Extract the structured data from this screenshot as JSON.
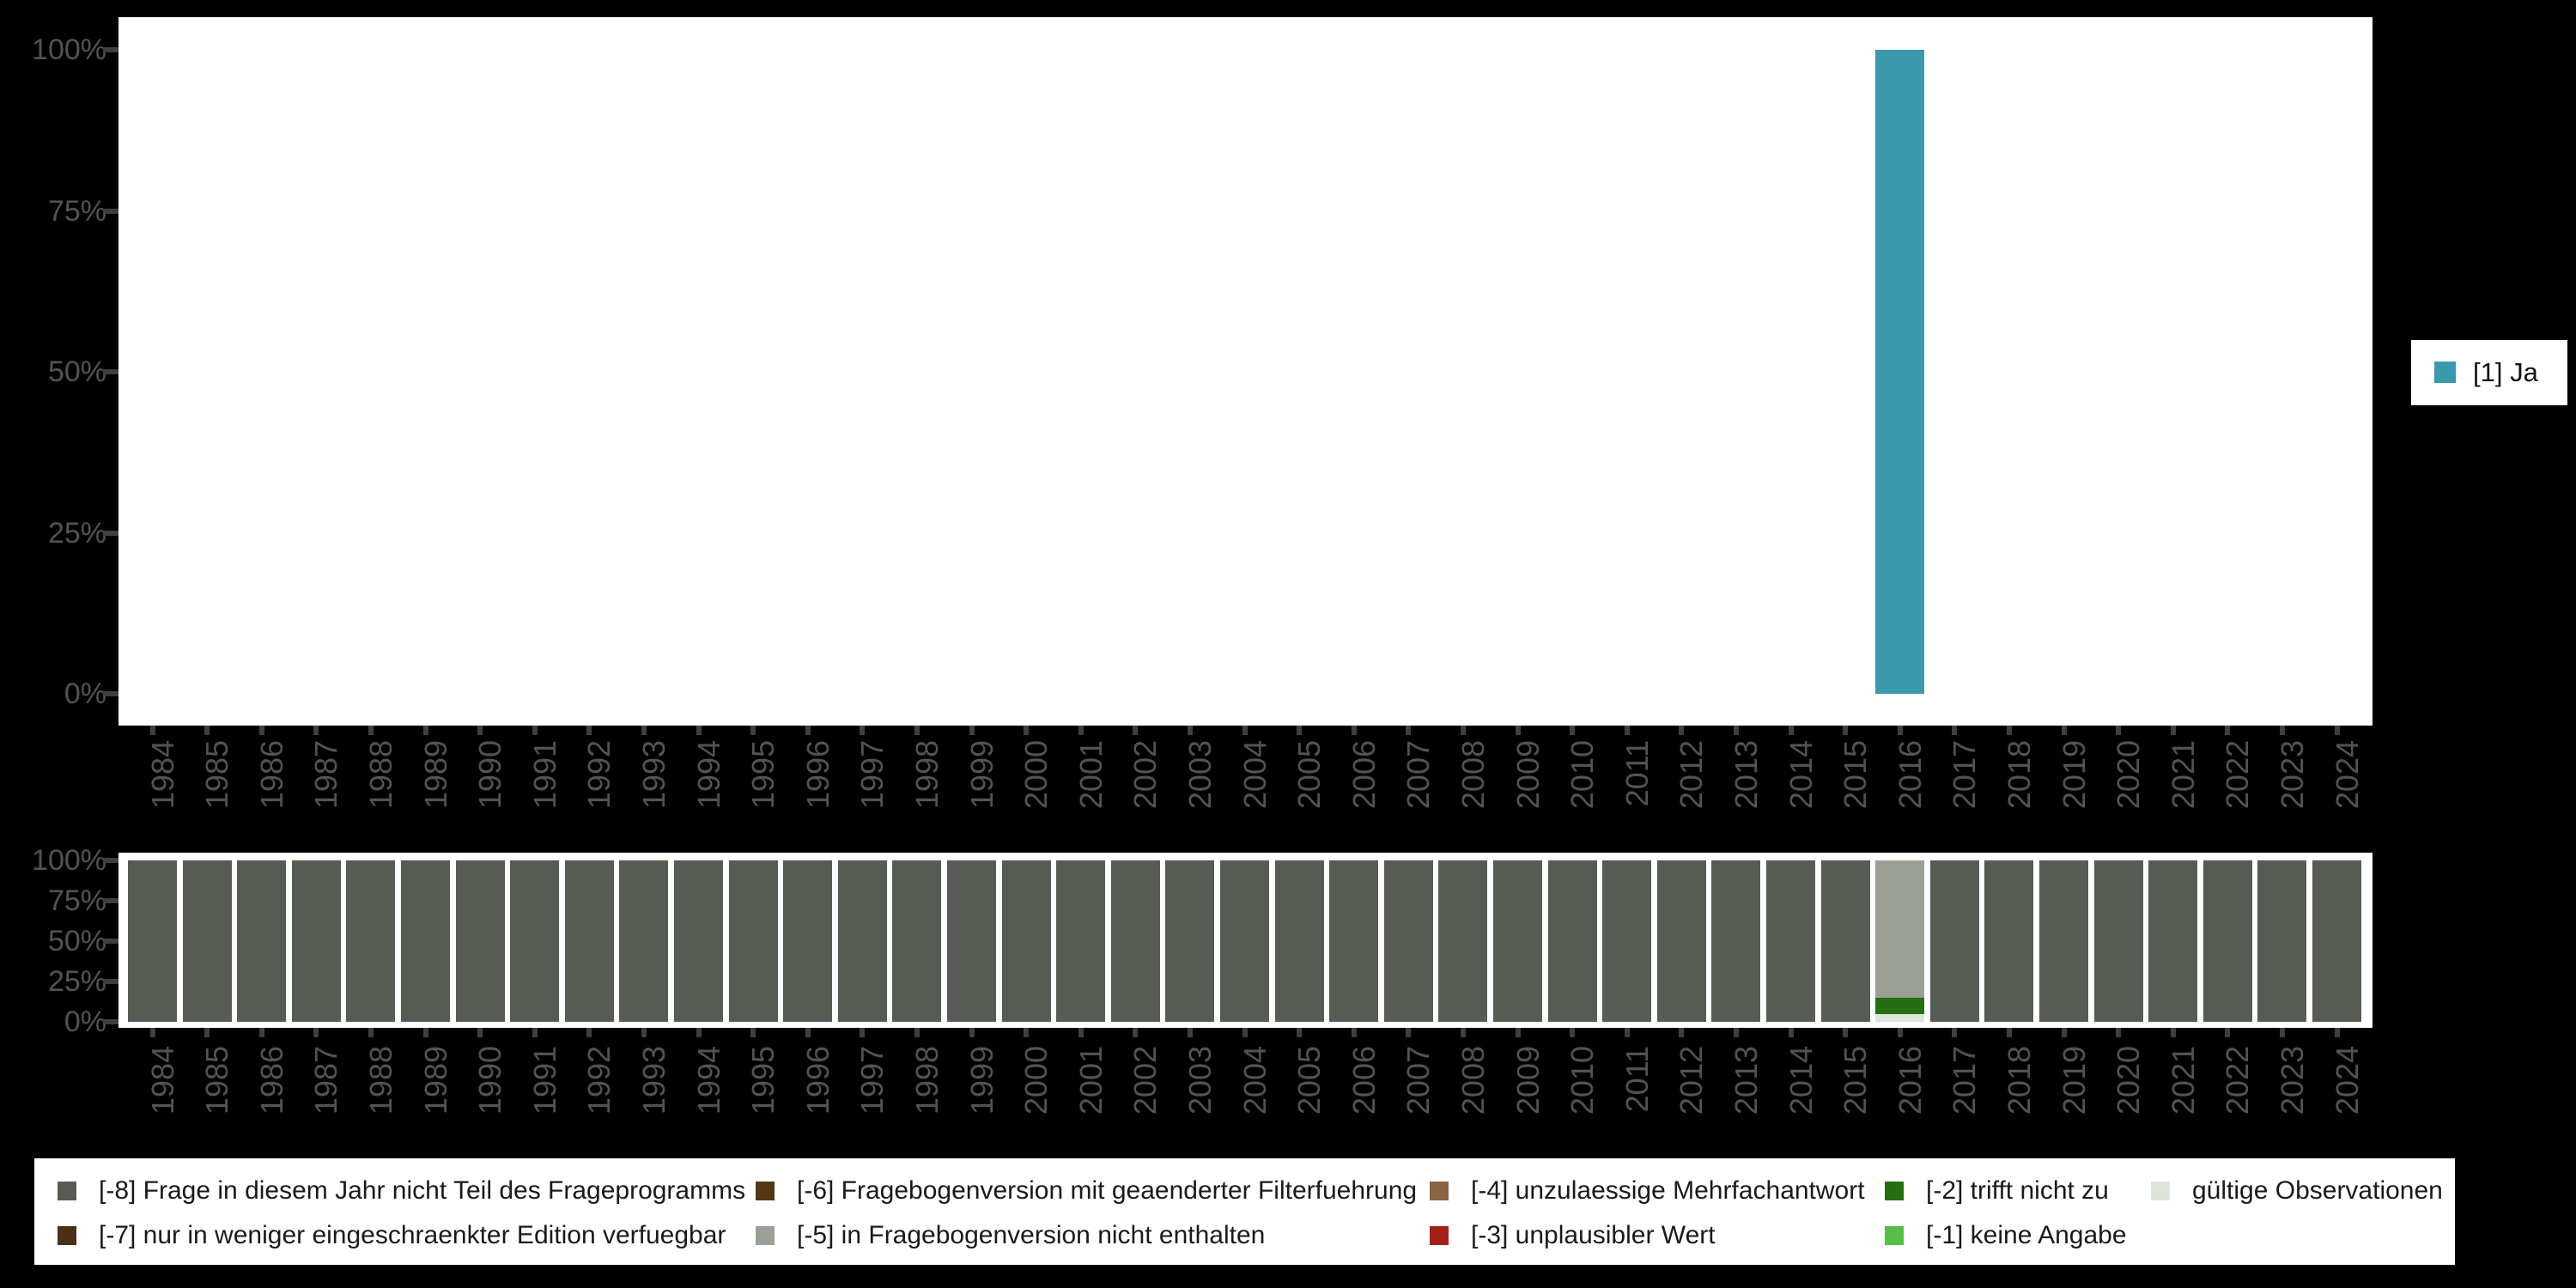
{
  "page_background": "#000000",
  "panel_background": "#ffffff",
  "right_legend": {
    "items": [
      {
        "label": "[1] Ja",
        "color": "#3a99ad"
      }
    ]
  },
  "missing_codes": [
    {
      "code": "-8",
      "label": "[-8] Frage in diesem Jahr nicht Teil des Frageprogramms",
      "color": "#565c54"
    },
    {
      "code": "-7",
      "label": "[-7] nur in weniger eingeschraenkter Edition verfuegbar",
      "color": "#4b3015"
    },
    {
      "code": "-6",
      "label": "[-6] Fragebogenversion mit geaenderter Filterfuehrung",
      "color": "#553617"
    },
    {
      "code": "-5",
      "label": "[-5] in Fragebogenversion nicht enthalten",
      "color": "#9aa096"
    },
    {
      "code": "-4",
      "label": "[-4] unzulaessige Mehrfachantwort",
      "color": "#8b6345"
    },
    {
      "code": "-3",
      "label": "[-3] unplausibler Wert",
      "color": "#a42119"
    },
    {
      "code": "-2",
      "label": "[-2] trifft nicht zu",
      "color": "#256e11"
    },
    {
      "code": "-1",
      "label": "[-1] keine Angabe",
      "color": "#56be46"
    },
    {
      "code": "valid",
      "label": "gültige Observationen",
      "color": "#dfe4da"
    }
  ],
  "legend_bottom": {
    "columns": [
      [
        "-8",
        "-7"
      ],
      [
        "-6",
        "-5"
      ],
      [
        "-4",
        "-3"
      ],
      [
        "-2",
        "-1"
      ],
      [
        "valid"
      ]
    ]
  },
  "chart_data": [
    {
      "id": "frequencies",
      "type": "bar",
      "title": "",
      "xlabel": "",
      "ylabel": "",
      "ylim": [
        0,
        100
      ],
      "yticks": [
        "0%",
        "25%",
        "50%",
        "75%",
        "100%"
      ],
      "grid": false,
      "legend_position": "right",
      "x_categories": [
        "1984",
        "1985",
        "1986",
        "1987",
        "1988",
        "1989",
        "1990",
        "1991",
        "1992",
        "1993",
        "1994",
        "1995",
        "1996",
        "1997",
        "1998",
        "1999",
        "2000",
        "2001",
        "2002",
        "2003",
        "2004",
        "2005",
        "2006",
        "2007",
        "2008",
        "2009",
        "2010",
        "2011",
        "2012",
        "2013",
        "2014",
        "2015",
        "2016",
        "2017",
        "2018",
        "2019",
        "2020",
        "2021",
        "2022",
        "2023",
        "2024"
      ],
      "series": [
        {
          "name": "[1] Ja",
          "color": "#3a99ad",
          "points": [
            {
              "x": "2016",
              "y": 100
            }
          ]
        }
      ]
    },
    {
      "id": "missings-per-year",
      "type": "stacked-bar",
      "title": "",
      "xlabel": "",
      "ylabel": "",
      "ylim": [
        0,
        100
      ],
      "yticks": [
        "0%",
        "25%",
        "50%",
        "75%",
        "100%"
      ],
      "grid": false,
      "legend_position": "bottom",
      "x_categories": [
        "1984",
        "1985",
        "1986",
        "1987",
        "1988",
        "1989",
        "1990",
        "1991",
        "1992",
        "1993",
        "1994",
        "1995",
        "1996",
        "1997",
        "1998",
        "1999",
        "2000",
        "2001",
        "2002",
        "2003",
        "2004",
        "2005",
        "2006",
        "2007",
        "2008",
        "2009",
        "2010",
        "2011",
        "2012",
        "2013",
        "2014",
        "2015",
        "2016",
        "2017",
        "2018",
        "2019",
        "2020",
        "2021",
        "2022",
        "2023",
        "2024"
      ],
      "default_stack": [
        {
          "code": "-8",
          "value": 100
        }
      ],
      "overrides": {
        "2016": [
          {
            "code": "valid",
            "value": 5
          },
          {
            "code": "-2",
            "value": 10
          },
          {
            "code": "-5",
            "value": 85
          }
        ]
      }
    }
  ]
}
